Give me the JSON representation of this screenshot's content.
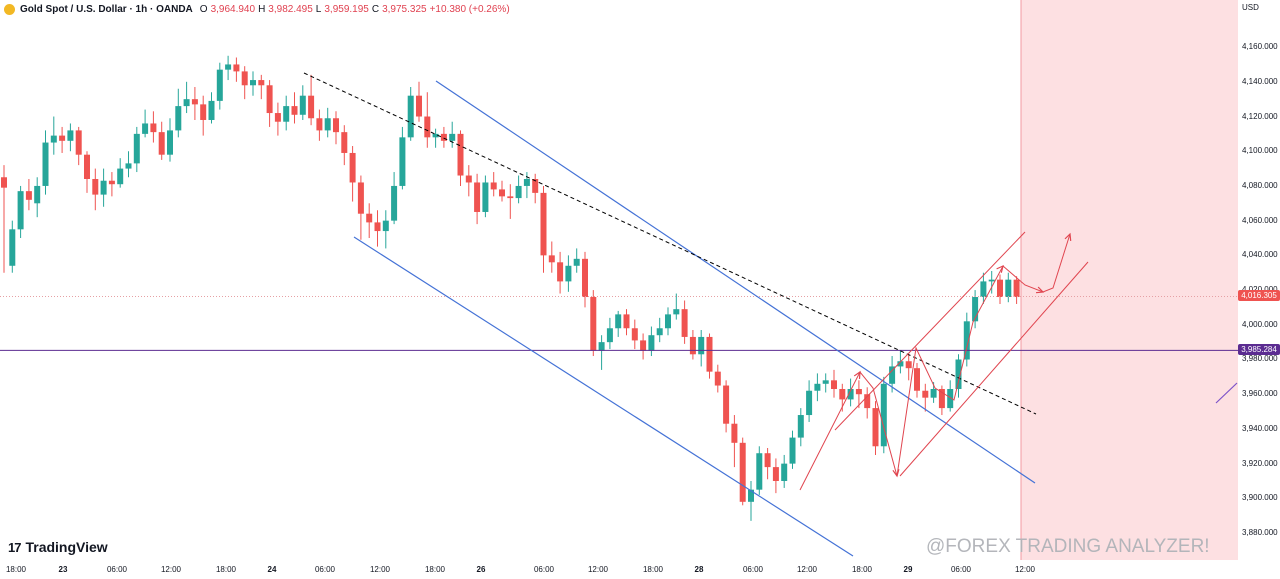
{
  "header": {
    "symbol_title": "Gold Spot / U.S. Dollar · 1h · OANDA",
    "open_label": "O",
    "open_value": "3,964.940",
    "high_label": "H",
    "high_value": "3,982.495",
    "low_label": "L",
    "low_value": "3,959.195",
    "close_label": "C",
    "close_value": "3,975.325",
    "change_value": "+10.380 (+0.26%)"
  },
  "axis": {
    "currency": "USD",
    "y_ticks": [
      "4,160.000",
      "4,140.000",
      "4,120.000",
      "4,100.000",
      "4,080.000",
      "4,060.000",
      "4,040.000",
      "4,020.000",
      "4,000.000",
      "3,980.000",
      "3,960.000",
      "3,940.000",
      "3,920.000",
      "3,900.000",
      "3,880.000"
    ],
    "x_ticks": [
      "18:00",
      "23",
      "06:00",
      "12:00",
      "18:00",
      "24",
      "06:00",
      "12:00",
      "18:00",
      "26",
      "06:00",
      "12:00",
      "18:00",
      "28",
      "06:00",
      "12:00",
      "18:00",
      "29",
      "06:00",
      "12:00"
    ]
  },
  "price_tags": {
    "current": "4,016.305",
    "level": "3,985.284"
  },
  "branding": {
    "logo_mark": "17",
    "logo_text": "TradingView",
    "watermark": "@FOREX TRADING ANALYZER!"
  },
  "colors": {
    "up": "#26a69a",
    "down": "#ef5350",
    "channel": "#4472d6",
    "dashed": "#000000",
    "level_line": "#5b2c91",
    "projection": "#e0454f",
    "future_zone": "#fde0e2"
  },
  "chart_data": {
    "type": "candlestick",
    "title": "Gold Spot / U.S. Dollar · 1h · OANDA",
    "ylabel": "USD",
    "ylim": [
      3876,
      4171
    ],
    "candles": [
      [
        4085,
        4079,
        4092,
        4030
      ],
      [
        4034,
        4055,
        4060,
        4030
      ],
      [
        4055,
        4077,
        4080,
        4050
      ],
      [
        4077,
        4072,
        4084,
        4066
      ],
      [
        4070,
        4080,
        4085,
        4062
      ],
      [
        4080,
        4105,
        4112,
        4075
      ],
      [
        4105,
        4109,
        4120,
        4098
      ],
      [
        4109,
        4106,
        4114,
        4099
      ],
      [
        4106,
        4112,
        4116,
        4100
      ],
      [
        4112,
        4098,
        4114,
        4092
      ],
      [
        4098,
        4084,
        4100,
        4076
      ],
      [
        4084,
        4075,
        4090,
        4066
      ],
      [
        4075,
        4083,
        4090,
        4068
      ],
      [
        4083,
        4081,
        4088,
        4074
      ],
      [
        4081,
        4090,
        4096,
        4079
      ],
      [
        4090,
        4093,
        4100,
        4085
      ],
      [
        4093,
        4110,
        4114,
        4088
      ],
      [
        4110,
        4116,
        4124,
        4108
      ],
      [
        4116,
        4111,
        4123,
        4105
      ],
      [
        4111,
        4098,
        4117,
        4095
      ],
      [
        4098,
        4112,
        4119,
        4094
      ],
      [
        4112,
        4126,
        4136,
        4108
      ],
      [
        4126,
        4130,
        4140,
        4122
      ],
      [
        4130,
        4127,
        4137,
        4118
      ],
      [
        4127,
        4118,
        4132,
        4109
      ],
      [
        4118,
        4129,
        4134,
        4116
      ],
      [
        4129,
        4147,
        4151,
        4124
      ],
      [
        4147,
        4150,
        4155,
        4141
      ],
      [
        4150,
        4146,
        4154,
        4140
      ],
      [
        4146,
        4138,
        4149,
        4130
      ],
      [
        4138,
        4141,
        4146,
        4132
      ],
      [
        4141,
        4138,
        4144,
        4130
      ],
      [
        4138,
        4122,
        4141,
        4114
      ],
      [
        4122,
        4117,
        4128,
        4109
      ],
      [
        4117,
        4126,
        4132,
        4112
      ],
      [
        4126,
        4121,
        4134,
        4116
      ],
      [
        4121,
        4132,
        4138,
        4118
      ],
      [
        4132,
        4119,
        4144,
        4115
      ],
      [
        4119,
        4112,
        4124,
        4106
      ],
      [
        4112,
        4119,
        4125,
        4108
      ],
      [
        4119,
        4111,
        4123,
        4104
      ],
      [
        4111,
        4099,
        4115,
        4092
      ],
      [
        4099,
        4082,
        4103,
        4071
      ],
      [
        4082,
        4064,
        4086,
        4049
      ],
      [
        4064,
        4059,
        4070,
        4050
      ],
      [
        4059,
        4054,
        4066,
        4045
      ],
      [
        4054,
        4060,
        4066,
        4044
      ],
      [
        4060,
        4080,
        4088,
        4058
      ],
      [
        4080,
        4108,
        4114,
        4078
      ],
      [
        4108,
        4132,
        4137,
        4106
      ],
      [
        4132,
        4120,
        4140,
        4117
      ],
      [
        4120,
        4108,
        4134,
        4102
      ],
      [
        4108,
        4110,
        4113,
        4102
      ],
      [
        4110,
        4106,
        4114,
        4102
      ],
      [
        4106,
        4110,
        4117,
        4102
      ],
      [
        4110,
        4086,
        4112,
        4080
      ],
      [
        4086,
        4082,
        4092,
        4074
      ],
      [
        4082,
        4065,
        4087,
        4058
      ],
      [
        4065,
        4082,
        4086,
        4062
      ],
      [
        4082,
        4078,
        4088,
        4074
      ],
      [
        4078,
        4074,
        4083,
        4071
      ],
      [
        4074,
        4073,
        4081,
        4061
      ],
      [
        4073,
        4080,
        4086,
        4070
      ],
      [
        4080,
        4084,
        4088,
        4073
      ],
      [
        4084,
        4076,
        4087,
        4070
      ],
      [
        4076,
        4040,
        4080,
        4030
      ],
      [
        4040,
        4036,
        4048,
        4030
      ],
      [
        4036,
        4025,
        4042,
        4018
      ],
      [
        4025,
        4034,
        4040,
        4019
      ],
      [
        4034,
        4038,
        4044,
        4030
      ],
      [
        4038,
        4016,
        4042,
        4010
      ],
      [
        4016,
        3985,
        4020,
        3982
      ],
      [
        3985,
        3990,
        3994,
        3974
      ],
      [
        3990,
        3998,
        4004,
        3986
      ],
      [
        3998,
        4006,
        4008,
        3993
      ],
      [
        4006,
        3998,
        4009,
        3994
      ],
      [
        3998,
        3991,
        4003,
        3986
      ],
      [
        3991,
        3985,
        3995,
        3980
      ],
      [
        3985,
        3994,
        3999,
        3982
      ],
      [
        3994,
        3998,
        4004,
        3990
      ],
      [
        3998,
        4006,
        4010,
        3994
      ],
      [
        4006,
        4009,
        4018,
        4003
      ],
      [
        4009,
        3993,
        4014,
        3989
      ],
      [
        3993,
        3983,
        3997,
        3980
      ],
      [
        3983,
        3993,
        3997,
        3976
      ],
      [
        3993,
        3973,
        3995,
        3969
      ],
      [
        3973,
        3965,
        3977,
        3961
      ],
      [
        3965,
        3943,
        3968,
        3938
      ],
      [
        3943,
        3932,
        3948,
        3918
      ],
      [
        3932,
        3898,
        3935,
        3896
      ],
      [
        3898,
        3905,
        3910,
        3887
      ],
      [
        3905,
        3926,
        3930,
        3902
      ],
      [
        3926,
        3918,
        3929,
        3911
      ],
      [
        3918,
        3910,
        3923,
        3903
      ],
      [
        3910,
        3920,
        3925,
        3906
      ],
      [
        3920,
        3935,
        3939,
        3917
      ],
      [
        3935,
        3948,
        3952,
        3930
      ],
      [
        3948,
        3962,
        3968,
        3944
      ],
      [
        3962,
        3966,
        3972,
        3956
      ],
      [
        3966,
        3968,
        3972,
        3961
      ],
      [
        3968,
        3963,
        3974,
        3958
      ],
      [
        3963,
        3957,
        3966,
        3950
      ],
      [
        3957,
        3963,
        3969,
        3953
      ],
      [
        3963,
        3960,
        3968,
        3952
      ],
      [
        3960,
        3952,
        3964,
        3946
      ],
      [
        3952,
        3930,
        3956,
        3925
      ],
      [
        3930,
        3966,
        3970,
        3926
      ],
      [
        3966,
        3976,
        3982,
        3961
      ],
      [
        3976,
        3979,
        3985,
        3972
      ],
      [
        3979,
        3975,
        3983,
        3968
      ],
      [
        3975,
        3962,
        3978,
        3958
      ],
      [
        3962,
        3958,
        3966,
        3950
      ],
      [
        3958,
        3963,
        3967,
        3955
      ],
      [
        3963,
        3952,
        3965,
        3948
      ],
      [
        3952,
        3963,
        3968,
        3950
      ],
      [
        3963,
        3980,
        3983,
        3958
      ],
      [
        3980,
        4002,
        4007,
        3976
      ],
      [
        4002,
        4016,
        4020,
        3998
      ],
      [
        4016,
        4025,
        4030,
        4012
      ],
      [
        4025,
        4026,
        4031,
        4018
      ],
      [
        4026,
        4016,
        4029,
        4012
      ],
      [
        4016,
        4026,
        4030,
        4013
      ],
      [
        4026,
        4016,
        4028,
        4012
      ]
    ],
    "price_levels": [
      4016.305,
      3985.284
    ]
  }
}
